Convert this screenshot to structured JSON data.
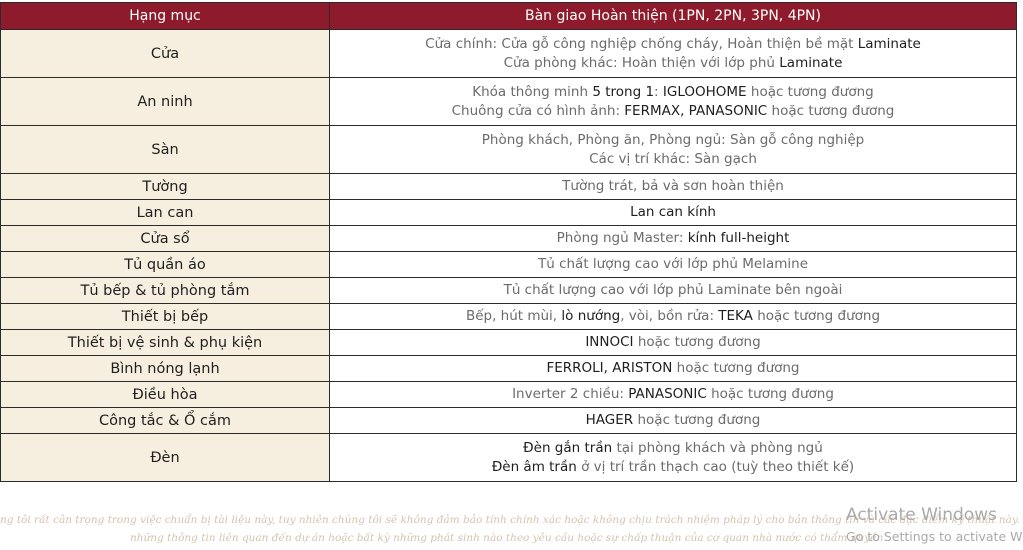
{
  "header": {
    "col_category": "Hạng mục",
    "col_spec": "Bàn giao Hoàn thiện (1PN, 2PN, 3PN, 4PN)"
  },
  "rows": [
    {
      "category": "Cửa",
      "lines": [
        [
          {
            "t": "Cửa chính: Cửa gỗ công nghiệp chống cháy, Hoàn thiện bề mặt ",
            "h": false
          },
          {
            "t": "Laminate",
            "h": true
          }
        ],
        [
          {
            "t": "Cửa phòng khác: Hoàn thiện với lớp phủ ",
            "h": false
          },
          {
            "t": "Laminate",
            "h": true
          }
        ]
      ]
    },
    {
      "category": "An ninh",
      "lines": [
        [
          {
            "t": "Khóa thông minh ",
            "h": false
          },
          {
            "t": "5 trong 1",
            "h": true
          },
          {
            "t": ": ",
            "h": false
          },
          {
            "t": "IGLOOHOME",
            "h": true
          },
          {
            "t": " hoặc tương đương",
            "h": false
          }
        ],
        [
          {
            "t": "Chuông cửa có hình ảnh: ",
            "h": false
          },
          {
            "t": "FERMAX, PANASONIC",
            "h": true
          },
          {
            "t": " hoặc tương đương",
            "h": false
          }
        ]
      ]
    },
    {
      "category": "Sàn",
      "lines": [
        [
          {
            "t": "Phòng khách, Phòng ăn, Phòng ngủ: Sàn gỗ công nghiệp",
            "h": false
          }
        ],
        [
          {
            "t": "Các vị trí khác: Sàn gạch",
            "h": false
          }
        ]
      ]
    },
    {
      "category": "Tường",
      "lines": [
        [
          {
            "t": "Tường trát, bả và sơn hoàn thiện",
            "h": false
          }
        ]
      ]
    },
    {
      "category": "Lan can",
      "lines": [
        [
          {
            "t": "Lan can kính",
            "h": true
          }
        ]
      ]
    },
    {
      "category": "Cửa sổ",
      "lines": [
        [
          {
            "t": "Phòng ngủ Master: ",
            "h": false
          },
          {
            "t": "kính full-height",
            "h": true
          }
        ]
      ]
    },
    {
      "category": "Tủ quần áo",
      "lines": [
        [
          {
            "t": "Tủ chất lượng cao với lớp phủ Melamine",
            "h": false
          }
        ]
      ]
    },
    {
      "category": "Tủ bếp & tủ phòng tắm",
      "lines": [
        [
          {
            "t": "Tủ chất lượng cao với lớp phủ Laminate bên ngoài",
            "h": false
          }
        ]
      ]
    },
    {
      "category": "Thiết bị bếp",
      "lines": [
        [
          {
            "t": "Bếp, hút mùi, ",
            "h": false
          },
          {
            "t": "lò nướng",
            "h": true
          },
          {
            "t": ", vòi, bồn rửa: ",
            "h": false
          },
          {
            "t": "TEKA",
            "h": true
          },
          {
            "t": " hoặc tương đương",
            "h": false
          }
        ]
      ]
    },
    {
      "category": "Thiết bị vệ sinh & phụ kiện",
      "lines": [
        [
          {
            "t": "INNOCI",
            "h": true
          },
          {
            "t": " hoặc tương đương",
            "h": false
          }
        ]
      ]
    },
    {
      "category": "Bình nóng lạnh",
      "lines": [
        [
          {
            "t": "FERROLI, ARISTON",
            "h": true
          },
          {
            "t": " hoặc tương đương",
            "h": false
          }
        ]
      ]
    },
    {
      "category": "Điều hòa",
      "lines": [
        [
          {
            "t": "Inverter 2 chiều: ",
            "h": false
          },
          {
            "t": "PANASONIC",
            "h": true
          },
          {
            "t": " hoặc tương đương",
            "h": false
          }
        ]
      ]
    },
    {
      "category": "Công tắc & Ổ cắm",
      "lines": [
        [
          {
            "t": "HAGER",
            "h": true
          },
          {
            "t": " hoặc tương đương",
            "h": false
          }
        ]
      ]
    },
    {
      "category": "Đèn",
      "lines": [
        [
          {
            "t": "Đèn gắn trần",
            "h": true
          },
          {
            "t": " tại phòng khách và phòng ngủ",
            "h": false
          }
        ],
        [
          {
            "t": "Đèn âm trần",
            "h": true
          },
          {
            "t": " ở vị trí trần thạch cao (tuỳ theo thiết kế)",
            "h": false
          }
        ]
      ]
    }
  ],
  "footer": {
    "line1": "ng tôi rất cân trọng trong việc chuẩn bị tài liệu này, tuy nhiên chúng tôi sẽ không đảm bảo tính chính xác hoặc không chịu trách nhiệm pháp lý cho bản thông tin và các đặc điểm kỹ thuật này. Đối tác tự quyền s",
    "line2": "những thông tin liên quan đến dự án hoặc bất kỳ những phát sinh nào theo yêu cầu hoặc sự chấp thuận của cơ quan nhà nước có thẩm quyền."
  },
  "watermark": {
    "title": "Activate Windows",
    "subtitle": "Go to Settings to activate W"
  }
}
